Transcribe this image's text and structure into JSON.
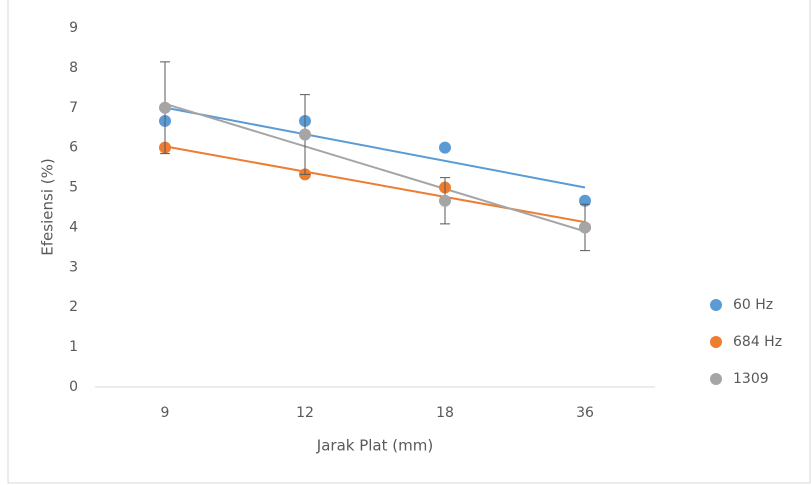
{
  "chart_data": {
    "type": "scatter",
    "categories": [
      "9",
      "12",
      "18",
      "36"
    ],
    "x_label": "Jarak Plat (mm)",
    "y_label": "Efesiensi (%)",
    "ylim": [
      0,
      9
    ],
    "yticks": [
      0,
      1,
      2,
      3,
      4,
      5,
      6,
      7,
      8,
      9
    ],
    "trendline": true,
    "legend": "right",
    "series": [
      {
        "name": "60 Hz",
        "color": "#5b9bd5",
        "values": [
          6.67,
          6.67,
          6.0,
          4.67
        ]
      },
      {
        "name": "684 Hz",
        "color": "#ed7d31",
        "values": [
          6.0,
          5.33,
          5.0,
          4.0
        ]
      },
      {
        "name": "1309",
        "color": "#a5a5a5",
        "values": [
          7.0,
          6.33,
          4.67,
          4.0
        ],
        "errors": [
          1.15,
          1.0,
          0.58,
          0.58
        ]
      }
    ]
  }
}
